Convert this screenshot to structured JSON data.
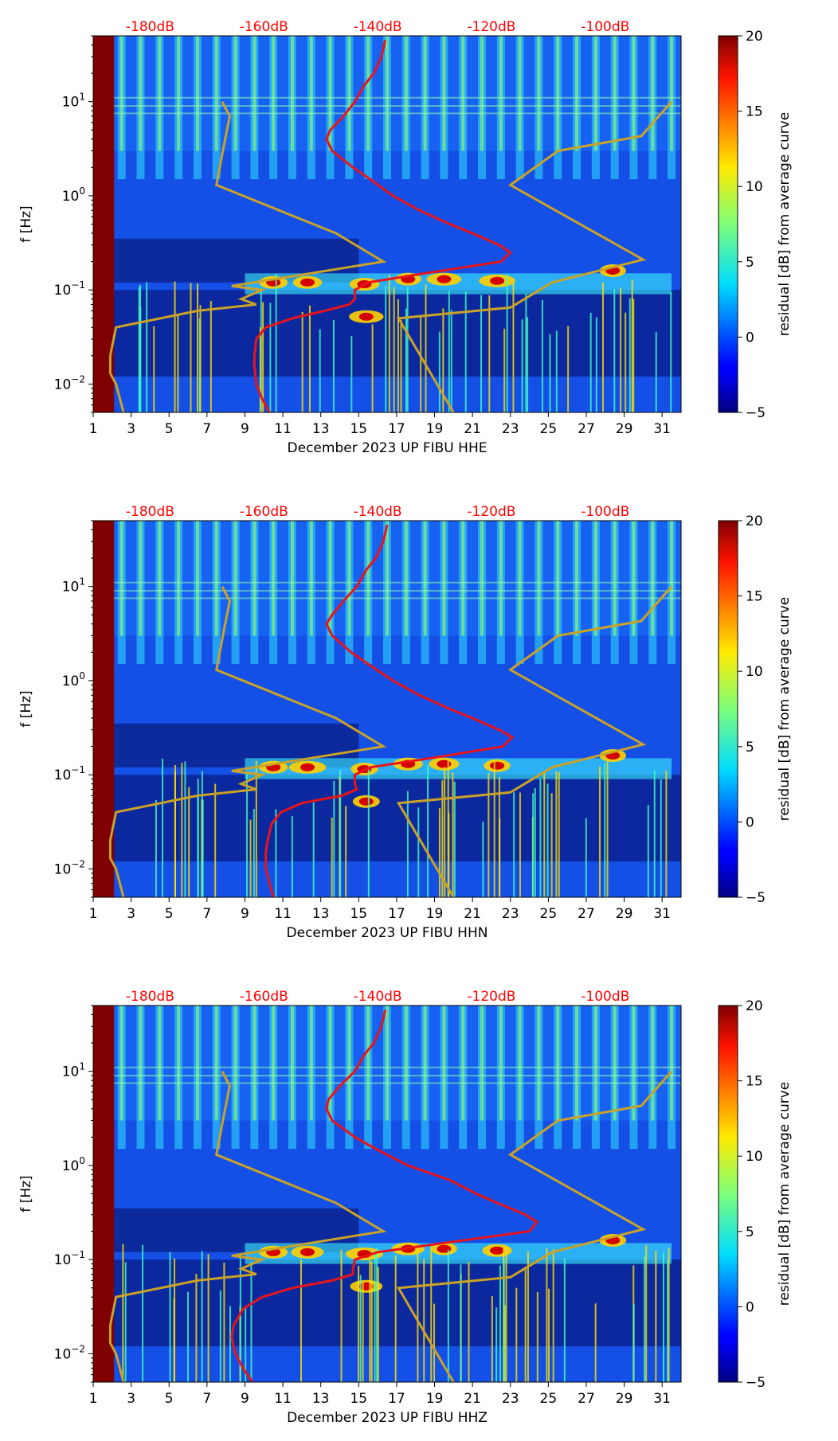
{
  "colors": {
    "background": "#ffffff",
    "median_line": "#e8141a",
    "noise_model": "#c9a227",
    "db_label": "#ff0000",
    "left_band": "#7f0000"
  },
  "chart_data": [
    {
      "type": "heatmap",
      "channel": "HHE",
      "xlabel": "December 2023 UP FIBU  HHE",
      "ylabel": "f [Hz]",
      "xlim": [
        1,
        32
      ],
      "ylim": [
        0.005,
        50
      ],
      "yscale": "log",
      "x_ticks": [
        "1",
        "3",
        "5",
        "7",
        "9",
        "11",
        "13",
        "15",
        "17",
        "19",
        "21",
        "23",
        "25",
        "27",
        "29",
        "31"
      ],
      "y_ticks": [
        {
          "base": "10",
          "exp": "1",
          "value": 10
        },
        {
          "base": "10",
          "exp": "0",
          "value": 1
        },
        {
          "base": "10",
          "exp": "−1",
          "value": 0.1
        },
        {
          "base": "10",
          "exp": "−2",
          "value": 0.01
        }
      ],
      "db_scale": {
        "labels": [
          "-180dB",
          "-160dB",
          "-140dB",
          "-120dB",
          "-100dB"
        ],
        "positions_day": [
          4,
          10,
          16,
          22,
          28
        ]
      },
      "colorbar": {
        "label": "residual [dB] from average curve",
        "range": [
          -5,
          20
        ],
        "ticks": [
          "20",
          "15",
          "10",
          "5",
          "0",
          "−5"
        ],
        "cmap": "jet"
      },
      "median_psd_curve": {
        "name": "average PSD (dB axis)",
        "freq_hz": [
          0.005,
          0.007,
          0.01,
          0.015,
          0.02,
          0.03,
          0.04,
          0.05,
          0.06,
          0.07,
          0.08,
          0.1,
          0.12,
          0.15,
          0.2,
          0.25,
          0.3,
          0.4,
          0.5,
          0.7,
          1,
          1.5,
          2,
          3,
          4,
          5,
          7,
          10,
          15,
          20,
          30,
          45
        ],
        "day": [
          10.3,
          9.9,
          9.6,
          9.5,
          9.5,
          9.6,
          10.1,
          11.5,
          13.2,
          14.5,
          14.8,
          14.8,
          15.5,
          18.5,
          22.5,
          23,
          22.4,
          21,
          19.8,
          18.2,
          16.8,
          15.6,
          14.7,
          13.6,
          13.3,
          13.5,
          14.2,
          14.8,
          15.3,
          15.8,
          16.2,
          16.4
        ]
      },
      "noise_model_curves": [
        {
          "name": "low noise model",
          "freq_hz": [
            0.005,
            0.01,
            0.013,
            0.02,
            0.04,
            0.06,
            0.07,
            0.08,
            0.1,
            0.11,
            0.2,
            0.4,
            1.3,
            3.5,
            7,
            10
          ],
          "day": [
            2.6,
            2.2,
            1.9,
            1.9,
            2.2,
            6.5,
            9.6,
            8.8,
            9.9,
            8.3,
            16.3,
            13.8,
            7.5,
            7.9,
            8.2,
            7.8
          ]
        },
        {
          "name": "high noise model",
          "freq_hz": [
            0.005,
            0.05,
            0.065,
            0.12,
            0.21,
            1.3,
            3,
            4.3,
            10
          ],
          "day": [
            20,
            17.1,
            23,
            25.2,
            30,
            23,
            25.5,
            29.9,
            31.5
          ]
        }
      ]
    },
    {
      "type": "heatmap",
      "channel": "HHN",
      "xlabel": "December 2023 UP FIBU  HHN",
      "ylabel": "f [Hz]",
      "xlim": [
        1,
        32
      ],
      "ylim": [
        0.005,
        50
      ],
      "yscale": "log",
      "x_ticks": [
        "1",
        "3",
        "5",
        "7",
        "9",
        "11",
        "13",
        "15",
        "17",
        "19",
        "21",
        "23",
        "25",
        "27",
        "29",
        "31"
      ],
      "y_ticks": [
        {
          "base": "10",
          "exp": "1",
          "value": 10
        },
        {
          "base": "10",
          "exp": "0",
          "value": 1
        },
        {
          "base": "10",
          "exp": "−1",
          "value": 0.1
        },
        {
          "base": "10",
          "exp": "−2",
          "value": 0.01
        }
      ],
      "db_scale": {
        "labels": [
          "-180dB",
          "-160dB",
          "-140dB",
          "-120dB",
          "-100dB"
        ],
        "positions_day": [
          4,
          10,
          16,
          22,
          28
        ]
      },
      "colorbar": {
        "label": "residual [dB] from average curve",
        "range": [
          -5,
          20
        ],
        "ticks": [
          "20",
          "15",
          "10",
          "5",
          "0",
          "−5"
        ],
        "cmap": "jet"
      },
      "median_psd_curve": {
        "name": "average PSD (dB axis)",
        "freq_hz": [
          0.005,
          0.007,
          0.01,
          0.015,
          0.02,
          0.03,
          0.04,
          0.05,
          0.06,
          0.07,
          0.08,
          0.1,
          0.12,
          0.15,
          0.2,
          0.25,
          0.3,
          0.4,
          0.5,
          0.7,
          1,
          1.5,
          2,
          3,
          4,
          5,
          7,
          10,
          15,
          20,
          30,
          45
        ],
        "day": [
          10.5,
          10.3,
          10.1,
          10.1,
          10.2,
          10.4,
          10.9,
          12,
          14.1,
          14.9,
          14.8,
          14.8,
          15.6,
          18.8,
          22.6,
          23.1,
          22.4,
          21,
          19.8,
          18.2,
          16.8,
          15.5,
          14.6,
          13.6,
          13.3,
          13.6,
          14.2,
          14.9,
          15.4,
          15.9,
          16.3,
          16.5
        ]
      },
      "noise_model_curves": [
        {
          "name": "low noise model",
          "freq_hz": [
            0.005,
            0.01,
            0.013,
            0.02,
            0.04,
            0.06,
            0.07,
            0.08,
            0.1,
            0.11,
            0.2,
            0.4,
            1.3,
            3.5,
            7,
            10
          ],
          "day": [
            2.6,
            2.2,
            1.9,
            1.9,
            2.2,
            6.5,
            9.6,
            8.8,
            9.9,
            8.3,
            16.3,
            13.8,
            7.5,
            7.9,
            8.2,
            7.8
          ]
        },
        {
          "name": "high noise model",
          "freq_hz": [
            0.005,
            0.05,
            0.065,
            0.12,
            0.21,
            1.3,
            3,
            4.3,
            10
          ],
          "day": [
            20,
            17.1,
            23,
            25.2,
            30,
            23,
            25.5,
            29.9,
            31.5
          ]
        }
      ]
    },
    {
      "type": "heatmap",
      "channel": "HHZ",
      "xlabel": "December 2023 UP FIBU  HHZ",
      "ylabel": "f [Hz]",
      "xlim": [
        1,
        32
      ],
      "ylim": [
        0.005,
        50
      ],
      "yscale": "log",
      "x_ticks": [
        "1",
        "3",
        "5",
        "7",
        "9",
        "11",
        "13",
        "15",
        "17",
        "19",
        "21",
        "23",
        "25",
        "27",
        "29",
        "31"
      ],
      "y_ticks": [
        {
          "base": "10",
          "exp": "1",
          "value": 10
        },
        {
          "base": "10",
          "exp": "0",
          "value": 1
        },
        {
          "base": "10",
          "exp": "−1",
          "value": 0.1
        },
        {
          "base": "10",
          "exp": "−2",
          "value": 0.01
        }
      ],
      "db_scale": {
        "labels": [
          "-180dB",
          "-160dB",
          "-140dB",
          "-120dB",
          "-100dB"
        ],
        "positions_day": [
          4,
          10,
          16,
          22,
          28
        ]
      },
      "colorbar": {
        "label": "residual [dB] from average curve",
        "range": [
          -5,
          20
        ],
        "ticks": [
          "20",
          "15",
          "10",
          "5",
          "0",
          "−5"
        ],
        "cmap": "jet"
      },
      "median_psd_curve": {
        "name": "average PSD (dB axis)",
        "freq_hz": [
          0.005,
          0.007,
          0.01,
          0.015,
          0.02,
          0.03,
          0.04,
          0.05,
          0.06,
          0.07,
          0.08,
          0.1,
          0.12,
          0.15,
          0.2,
          0.25,
          0.3,
          0.4,
          0.5,
          0.7,
          1,
          1.5,
          2,
          3,
          4,
          5,
          7,
          10,
          15,
          20,
          30,
          45
        ],
        "day": [
          9.4,
          8.9,
          8.5,
          8.3,
          8.4,
          8.9,
          9.9,
          11.5,
          13.6,
          14.7,
          14.7,
          14.8,
          16,
          19.5,
          24,
          24.4,
          23.8,
          22.3,
          21.2,
          19.8,
          17.6,
          15.9,
          14.8,
          13.6,
          13.3,
          13.4,
          14,
          14.8,
          15.3,
          15.8,
          16.2,
          16.4
        ]
      },
      "noise_model_curves": [
        {
          "name": "low noise model",
          "freq_hz": [
            0.005,
            0.01,
            0.013,
            0.02,
            0.04,
            0.06,
            0.07,
            0.08,
            0.1,
            0.11,
            0.2,
            0.4,
            1.3,
            3.5,
            7,
            10
          ],
          "day": [
            2.6,
            2.2,
            1.9,
            1.9,
            2.2,
            6.5,
            9.6,
            8.8,
            9.9,
            8.3,
            16.3,
            13.8,
            7.5,
            7.9,
            8.2,
            7.8
          ]
        },
        {
          "name": "high noise model",
          "freq_hz": [
            0.005,
            0.05,
            0.065,
            0.12,
            0.21,
            1.3,
            3,
            4.3,
            10
          ],
          "day": [
            20,
            17.1,
            23,
            25.2,
            30,
            23,
            25.5,
            29.9,
            31.5
          ]
        }
      ]
    }
  ]
}
